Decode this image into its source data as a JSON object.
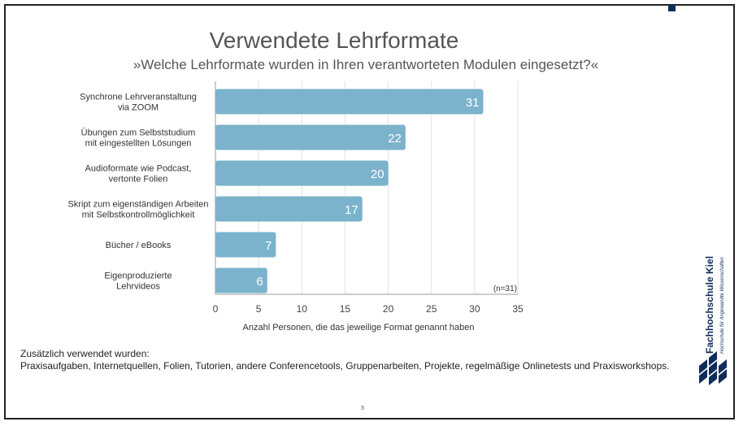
{
  "slide": {
    "title": "Verwendete Lehrformate",
    "subtitle": "»Welche Lehrformate wurden in Ihren verantworteten Modulen eingesetzt?«",
    "additional_heading": "Zusätzlich verwendet wurden:",
    "additional_text": "Praxisaufgaben, Internetquellen, Folien, Tutorien, andere Conferencetools, Gruppenarbeiten, Projekte, regelmäßige Onlinetests und Praxisworkshops.",
    "page_number": "3",
    "logo_name": "Fachhochschule Kiel",
    "logo_tagline": "Hochschule für Angewandte Wissenschaften"
  },
  "chart_data": {
    "type": "bar",
    "orientation": "horizontal",
    "categories": [
      [
        "Synchrone Lehrveranstaltung",
        "via ZOOM"
      ],
      [
        "Übungen zum Selbststudium",
        "mit eingestellten Lösungen"
      ],
      [
        "Audioformate wie Podcast,",
        "vertonte Folien"
      ],
      [
        "Skript zum eigenständigen Arbeiten",
        "mit Selbstkontrollmöglichkeit"
      ],
      [
        "Bücher / eBooks"
      ],
      [
        "Eigenproduzierte",
        "Lehrvideos"
      ]
    ],
    "values": [
      31,
      22,
      20,
      17,
      7,
      6
    ],
    "xlabel": "Anzahl Personen, die das jeweilige Format genannt haben",
    "xlim": [
      0,
      35
    ],
    "xticks": [
      0,
      5,
      10,
      15,
      20,
      25,
      30,
      35
    ],
    "annotation": "(n=31)",
    "grid": "vertical",
    "bar_color": "#7ab3cb",
    "label_color": "#ffffff"
  }
}
